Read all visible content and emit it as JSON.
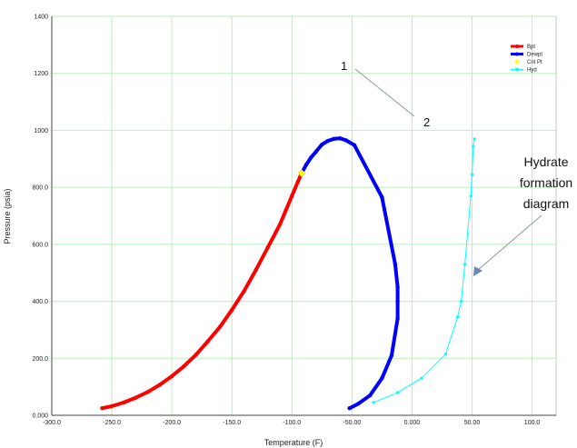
{
  "chart_data": {
    "type": "line",
    "xlabel": "Temperature (F)",
    "ylabel": "Pressure (psia)",
    "xlim": [
      -300,
      120
    ],
    "ylim": [
      0,
      1400
    ],
    "grid": true,
    "legend_position": "top-right",
    "xticks": [
      -300,
      -250,
      -200,
      -150,
      -100,
      -50,
      0,
      50,
      100
    ],
    "xtick_labels": [
      "-300.0",
      "-250.0",
      "-200.0",
      "-150.0",
      "-100.0",
      "-50.00",
      "0.000",
      "50.00",
      "100.0"
    ],
    "yticks": [
      0,
      200,
      400,
      600,
      800,
      1000,
      1200,
      1400
    ],
    "ytick_labels": [
      "0.000",
      "200.0",
      "400.0",
      "600.0",
      "800.0",
      "1000",
      "1200",
      "1400"
    ],
    "series": [
      {
        "name": "Bpt",
        "color": "#ff0000",
        "x": [
          -258,
          -250,
          -240,
          -230,
          -220,
          -210,
          -200,
          -190,
          -180,
          -170,
          -160,
          -150,
          -140,
          -130,
          -120,
          -110,
          -105,
          -100,
          -95,
          -92
        ],
        "y": [
          25,
          32,
          45,
          62,
          82,
          107,
          137,
          172,
          212,
          260,
          310,
          370,
          435,
          510,
          590,
          670,
          720,
          770,
          820,
          850
        ]
      },
      {
        "name": "Dewpt",
        "color": "#0000ff",
        "x": [
          -92,
          -88,
          -84,
          -80,
          -75,
          -70,
          -65,
          -60,
          -55,
          -48,
          -25,
          -14,
          -12,
          -12,
          -12,
          -17,
          -25,
          -35,
          -45,
          -52
        ],
        "y": [
          850,
          880,
          905,
          925,
          950,
          963,
          970,
          972,
          965,
          948,
          765,
          530,
          450,
          400,
          340,
          210,
          130,
          70,
          40,
          25
        ]
      },
      {
        "name": "Crit Pt",
        "color": "#ffff00",
        "x": [
          -92
        ],
        "y": [
          850
        ]
      },
      {
        "name": "Hyd",
        "color": "#00ffff",
        "x": [
          -32,
          -12,
          8,
          28,
          38,
          41,
          44,
          49,
          50,
          51,
          52
        ],
        "y": [
          45,
          80,
          130,
          215,
          345,
          400,
          530,
          770,
          845,
          945,
          970
        ]
      }
    ],
    "annotations": {
      "label_1": "1",
      "label_2": "2",
      "hydrate_line1": "Hydrate",
      "hydrate_line2": "formation",
      "hydrate_line3": "diagram"
    }
  }
}
